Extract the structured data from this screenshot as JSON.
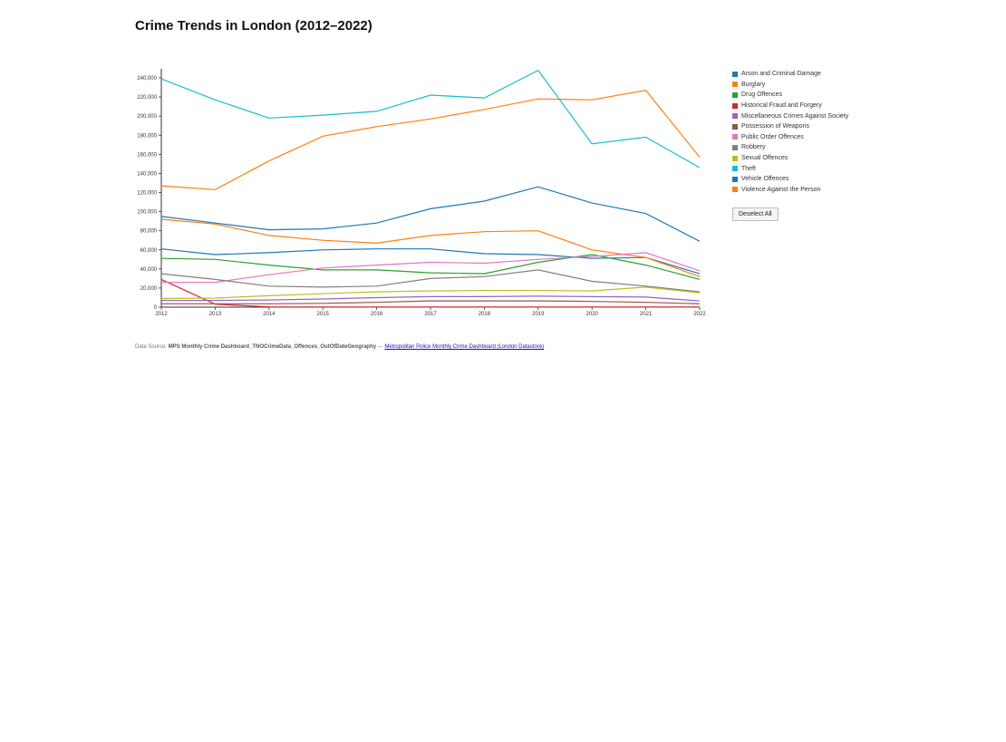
{
  "chart_data": {
    "type": "line",
    "title": "Crime Trends in London (2012–2022)",
    "xlabel": "",
    "ylabel": "",
    "x": [
      "2012",
      "2013",
      "2014",
      "2015",
      "2016",
      "2017",
      "2018",
      "2019",
      "2020",
      "2021",
      "2022"
    ],
    "ylim": [
      0,
      240000
    ],
    "yticks": [
      "0",
      "20,000",
      "40,000",
      "60,000",
      "80,000",
      "100,000",
      "120,000",
      "140,000",
      "160,000",
      "180,000",
      "200,000",
      "220,000",
      "240,000"
    ],
    "grid": false,
    "legend_position": "right",
    "series": [
      {
        "name": "Arson and Criminal Damage",
        "color": "#1f77b4",
        "values": [
          61000,
          55000,
          57000,
          60000,
          61000,
          61000,
          56000,
          55000,
          51000,
          52000,
          35000
        ]
      },
      {
        "name": "Burglary",
        "color": "#ff7f0e",
        "values": [
          92000,
          87000,
          75000,
          70000,
          67000,
          75000,
          79000,
          80000,
          60000,
          52000,
          32000
        ]
      },
      {
        "name": "Drug Offences",
        "color": "#2ca02c",
        "values": [
          51000,
          50000,
          44000,
          39000,
          39000,
          36000,
          35000,
          47000,
          55000,
          44000,
          29000
        ]
      },
      {
        "name": "Historical Fraud and Forgery",
        "color": "#d62728",
        "values": [
          29000,
          3000,
          300,
          200,
          200,
          100,
          100,
          100,
          100,
          100,
          100
        ]
      },
      {
        "name": "Miscellaneous Crimes Against Society",
        "color": "#9467bd",
        "values": [
          7000,
          7000,
          7500,
          8500,
          10000,
          11000,
          11000,
          11500,
          11000,
          10500,
          6500
        ]
      },
      {
        "name": "Possession of Weapons",
        "color": "#8c564b",
        "values": [
          3500,
          3500,
          3500,
          4000,
          5000,
          6500,
          6500,
          6500,
          6000,
          5000,
          3500
        ]
      },
      {
        "name": "Public Order Offences",
        "color": "#e377c2",
        "values": [
          26000,
          26000,
          34000,
          41000,
          44000,
          47000,
          46000,
          50000,
          53000,
          57000,
          38000
        ]
      },
      {
        "name": "Robbery",
        "color": "#7f7f7f",
        "values": [
          35000,
          29000,
          22000,
          21000,
          22000,
          30000,
          32000,
          39000,
          27000,
          22000,
          16000
        ]
      },
      {
        "name": "Sexual Offences",
        "color": "#bcbd22",
        "values": [
          9000,
          9500,
          12000,
          14000,
          16000,
          17000,
          17500,
          17500,
          17000,
          21000,
          15000
        ]
      },
      {
        "name": "Theft",
        "color": "#17becf",
        "values": [
          239000,
          217000,
          198000,
          201000,
          205000,
          222000,
          219000,
          248000,
          171000,
          178000,
          146000
        ]
      },
      {
        "name": "Vehicle Offences",
        "color": "#1f77b4",
        "values": [
          95000,
          88000,
          81000,
          82000,
          88000,
          103000,
          111000,
          126000,
          109000,
          98000,
          69000
        ]
      },
      {
        "name": "Violence Against the Person",
        "color": "#ff7f0e",
        "values": [
          127000,
          123000,
          153000,
          179000,
          189000,
          197000,
          207000,
          218000,
          217000,
          227000,
          157000
        ]
      }
    ]
  },
  "controls": {
    "deselect_label": "Deselect All"
  },
  "source": {
    "prefix": "Data Source: ",
    "name": "MPS Monthly Crime Dashboard_TNOCrimeData_Offences_OutOfDateGeography",
    "separator": " — ",
    "link_text": "Metropolitan Police Monthly Crime Dashboard (London Datastore)"
  }
}
